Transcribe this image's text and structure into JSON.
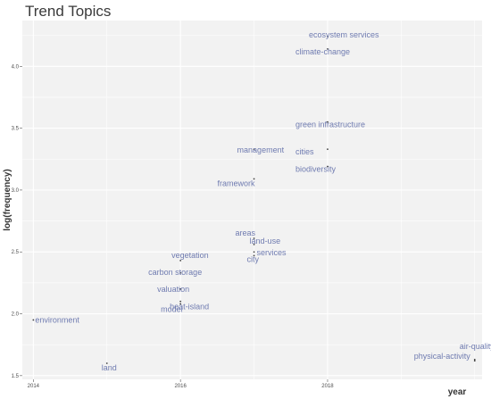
{
  "title": "Trend Topics",
  "chart_data": {
    "type": "scatter",
    "title": "Trend Topics",
    "xlabel": "year",
    "ylabel": "log(frequency)",
    "xlim": [
      2013.85,
      2020.1
    ],
    "ylim": [
      1.47,
      4.37
    ],
    "x_ticks": [
      2014,
      2016,
      2018
    ],
    "y_ticks": [
      "1.5",
      "2.0",
      "2.5",
      "3.0",
      "3.5",
      "4.0"
    ],
    "grid": true,
    "label_color": "#6f7bb0",
    "panel_color": "#f2f2f2",
    "points": [
      {
        "term": "ecosystem services",
        "x": 2018,
        "y": 4.24
      },
      {
        "term": "climate-change",
        "x": 2018,
        "y": 4.14
      },
      {
        "term": "green infrastructure",
        "x": 2018,
        "y": 3.55
      },
      {
        "term": "cities",
        "x": 2018,
        "y": 3.33
      },
      {
        "term": "biodiversity",
        "x": 2018,
        "y": 3.19
      },
      {
        "term": "management",
        "x": 2017,
        "y": 3.33
      },
      {
        "term": "framework",
        "x": 2017,
        "y": 3.09
      },
      {
        "term": "areas",
        "x": 2017,
        "y": 2.61
      },
      {
        "term": "land-use",
        "x": 2017,
        "y": 2.56
      },
      {
        "term": "services",
        "x": 2017,
        "y": 2.5
      },
      {
        "term": "city",
        "x": 2017,
        "y": 2.47
      },
      {
        "term": "vegetation",
        "x": 2016,
        "y": 2.43
      },
      {
        "term": "carbon storage",
        "x": 2016,
        "y": 2.33
      },
      {
        "term": "valuation",
        "x": 2016,
        "y": 2.2
      },
      {
        "term": "heat-island",
        "x": 2016,
        "y": 2.1
      },
      {
        "term": "model",
        "x": 2016,
        "y": 2.08
      },
      {
        "term": "environment",
        "x": 2014,
        "y": 1.95
      },
      {
        "term": "land",
        "x": 2015,
        "y": 1.6
      },
      {
        "term": "air-quality",
        "x": 2020,
        "y": 1.63
      },
      {
        "term": "physical-activity",
        "x": 2020,
        "y": 1.62
      }
    ]
  }
}
